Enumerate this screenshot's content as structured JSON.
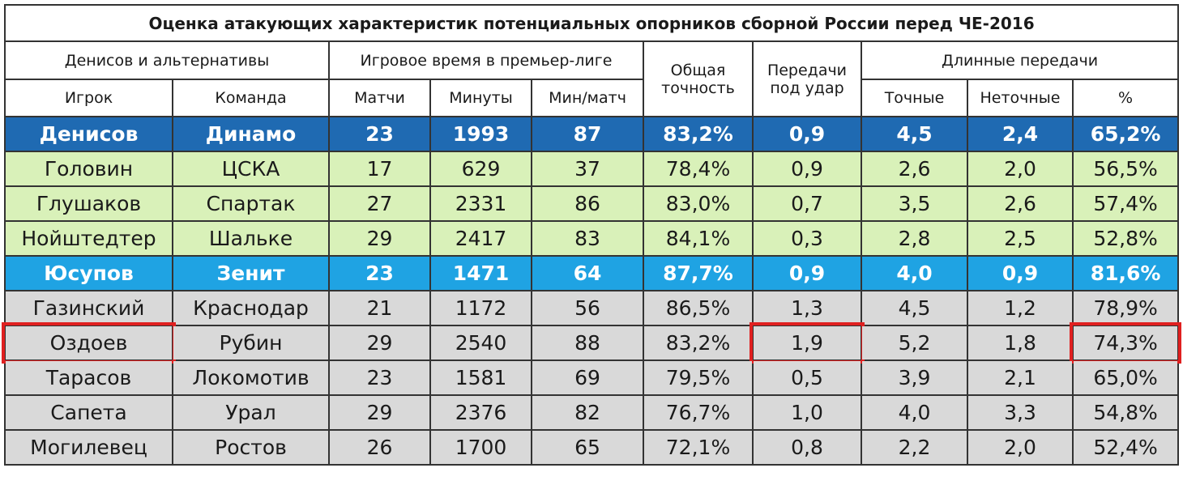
{
  "header": {
    "title": "Оценка атакующих характеристик потенциальных опорников сборной России перед ЧЕ-2016",
    "groups": [
      "Денисов и альтернативы",
      "Игровое время в премьер-лиге",
      "Общая точность",
      "Передачи под удар",
      "Длинные передачи"
    ],
    "columns": [
      "Игрок",
      "Команда",
      "Матчи",
      "Минуты",
      "Мин/матч",
      "Точные",
      "Неточные",
      "%"
    ]
  },
  "rows": [
    {
      "fill": "#1f6ab2",
      "text_color": "#ffffff",
      "cells": [
        "Денисов",
        "Динамо",
        "23",
        "1993",
        "87",
        "83,2%",
        "0,9",
        "4,5",
        "2,4",
        "65,2%"
      ]
    },
    {
      "fill": "#d9f1b9",
      "text_color": "#1a1a1a",
      "cells": [
        "Головин",
        "ЦСКА",
        "17",
        "629",
        "37",
        "78,4%",
        "0,9",
        "2,6",
        "2,0",
        "56,5%"
      ]
    },
    {
      "fill": "#d9f1b9",
      "text_color": "#1a1a1a",
      "cells": [
        "Глушаков",
        "Спартак",
        "27",
        "2331",
        "86",
        "83,0%",
        "0,7",
        "3,5",
        "2,6",
        "57,4%"
      ]
    },
    {
      "fill": "#d9f1b9",
      "text_color": "#1a1a1a",
      "cells": [
        "Нойштедтер",
        "Шальке",
        "29",
        "2417",
        "83",
        "84,1%",
        "0,3",
        "2,8",
        "2,5",
        "52,8%"
      ]
    },
    {
      "fill": "#1fa3e3",
      "text_color": "#ffffff",
      "cells": [
        "Юсупов",
        "Зенит",
        "23",
        "1471",
        "64",
        "87,7%",
        "0,9",
        "4,0",
        "0,9",
        "81,6%"
      ]
    },
    {
      "fill": "#d9d9d9",
      "text_color": "#1a1a1a",
      "cells": [
        "Газинский",
        "Краснодар",
        "21",
        "1172",
        "56",
        "86,5%",
        "1,3",
        "4,5",
        "1,2",
        "78,9%"
      ]
    },
    {
      "fill": "#d9d9d9",
      "text_color": "#1a1a1a",
      "cells": [
        "Оздоев",
        "Рубин",
        "29",
        "2540",
        "88",
        "83,2%",
        "1,9",
        "5,2",
        "1,8",
        "74,3%"
      ]
    },
    {
      "fill": "#d9d9d9",
      "text_color": "#1a1a1a",
      "cells": [
        "Тарасов",
        "Локомотив",
        "23",
        "1581",
        "69",
        "79,5%",
        "0,5",
        "3,9",
        "2,1",
        "65,0%"
      ]
    },
    {
      "fill": "#d9d9d9",
      "text_color": "#1a1a1a",
      "cells": [
        "Сапета",
        "Урал",
        "29",
        "2376",
        "82",
        "76,7%",
        "1,0",
        "4,0",
        "3,3",
        "54,8%"
      ]
    },
    {
      "fill": "#d9d9d9",
      "text_color": "#1a1a1a",
      "cells": [
        "Могилевец",
        "Ростов",
        "26",
        "1700",
        "65",
        "72,1%",
        "0,8",
        "2,2",
        "2,0",
        "52,4%"
      ]
    }
  ]
}
